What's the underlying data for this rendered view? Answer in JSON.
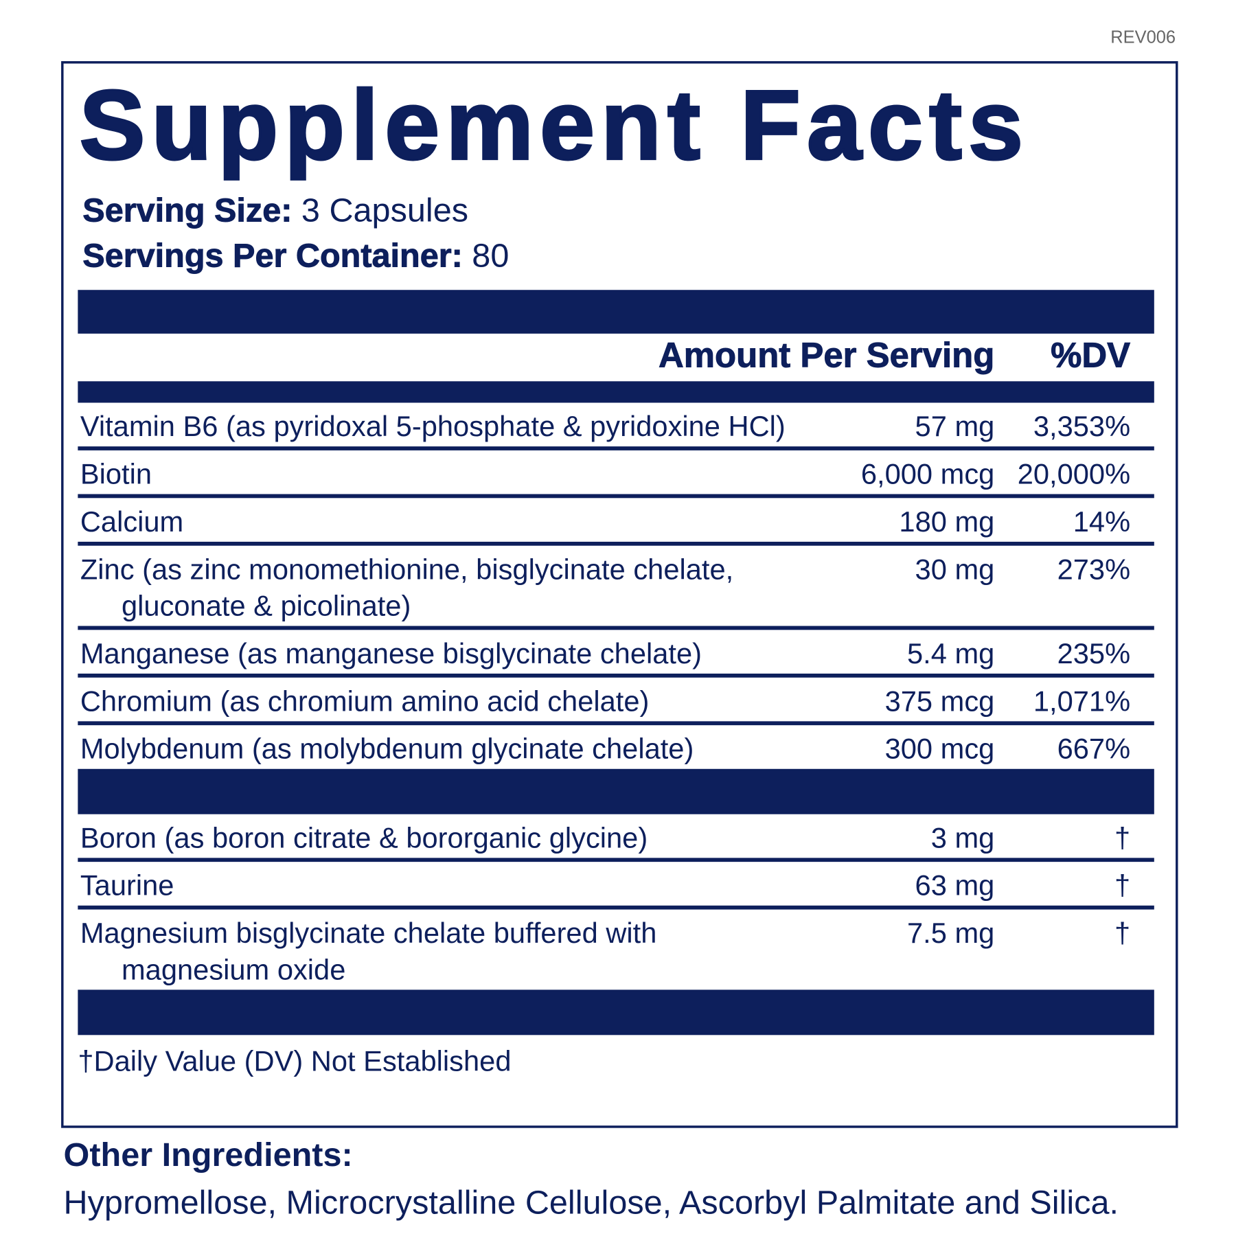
{
  "revision": "REV006",
  "title": "Supplement Facts",
  "serving_size": {
    "label": "Serving Size:",
    "value": "3 Capsules"
  },
  "servings_per_container": {
    "label": "Servings Per Container:",
    "value": "80"
  },
  "table": {
    "header": {
      "amount": "Amount Per Serving",
      "dv": "%DV"
    },
    "sections": [
      [
        {
          "name": [
            "Vitamin B6 (as pyridoxal 5-phosphate & pyridoxine HCl)"
          ],
          "amount": "57 mg",
          "dv": "3,353%"
        },
        {
          "name": [
            "Biotin"
          ],
          "amount": "6,000 mcg",
          "dv": "20,000%"
        },
        {
          "name": [
            "Calcium"
          ],
          "amount": "180 mg",
          "dv": "14%"
        },
        {
          "name": [
            "Zinc (as zinc monomethionine, bisglycinate chelate,",
            "gluconate & picolinate)"
          ],
          "amount": "30 mg",
          "dv": "273%"
        },
        {
          "name": [
            "Manganese (as manganese bisglycinate chelate)"
          ],
          "amount": "5.4 mg",
          "dv": "235%"
        },
        {
          "name": [
            "Chromium (as chromium amino acid chelate)"
          ],
          "amount": "375 mcg",
          "dv": "1,071%"
        },
        {
          "name": [
            "Molybdenum (as molybdenum glycinate chelate)"
          ],
          "amount": "300 mcg",
          "dv": "667%"
        }
      ],
      [
        {
          "name": [
            "Boron (as boron citrate & bororganic glycine)"
          ],
          "amount": "3 mg",
          "dv": "†"
        },
        {
          "name": [
            "Taurine"
          ],
          "amount": "63 mg",
          "dv": "†"
        },
        {
          "name": [
            "Magnesium bisglycinate chelate buffered with",
            "magnesium oxide"
          ],
          "amount": "7.5 mg",
          "dv": "†"
        }
      ]
    ]
  },
  "footnote": "†Daily Value (DV) Not Established",
  "other_ingredients": {
    "label": "Other Ingredients:",
    "text": "Hypromellose, Microcrystalline Cellulose, Ascorbyl Palmitate and Silica."
  }
}
